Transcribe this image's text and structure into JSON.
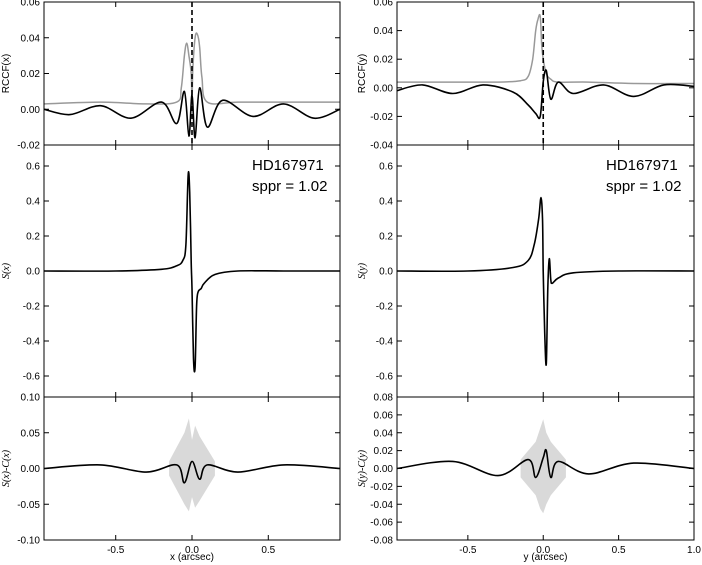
{
  "chart_data": [
    {
      "type": "line",
      "panel": "left-top",
      "xlim": [
        -0.97,
        0.97
      ],
      "ylim": [
        -0.02,
        0.06
      ],
      "ylabel": "RCCF(x)",
      "yticks": [
        -0.02,
        0.0,
        0.02,
        0.04,
        0.06
      ],
      "ytick_labels": [
        "-0.02",
        "0.00",
        "0.02",
        "0.04",
        "0.06"
      ],
      "vline_x": 0.0,
      "series": [
        {
          "color": "#999999",
          "x": [
            -0.97,
            -0.6,
            -0.3,
            -0.1,
            -0.07,
            -0.05,
            -0.035,
            -0.02,
            -0.005,
            0.0,
            0.005,
            0.02,
            0.035,
            0.05,
            0.065,
            0.1,
            0.3,
            0.6,
            0.97
          ],
          "y": [
            0.003,
            0.004,
            0.003,
            0.004,
            0.012,
            0.03,
            0.037,
            0.03,
            0.02,
            0.005,
            0.022,
            0.04,
            0.042,
            0.035,
            0.018,
            0.004,
            0.004,
            0.004,
            0.004
          ]
        },
        {
          "color": "#000000",
          "x": [
            -0.97,
            -0.8,
            -0.6,
            -0.4,
            -0.2,
            -0.1,
            -0.05,
            -0.02,
            0.0,
            0.02,
            0.05,
            0.1,
            0.2,
            0.4,
            0.6,
            0.8,
            0.97
          ],
          "y": [
            0.0,
            -0.003,
            0.002,
            -0.005,
            0.004,
            -0.008,
            0.01,
            -0.015,
            0.008,
            -0.016,
            0.012,
            -0.01,
            0.005,
            -0.004,
            0.003,
            -0.005,
            0.0
          ]
        }
      ]
    },
    {
      "type": "line",
      "panel": "left-middle",
      "xlim": [
        -0.97,
        0.97
      ],
      "ylim": [
        -0.72,
        0.72
      ],
      "ylabel": "S(x)",
      "yticks": [
        -0.6,
        -0.4,
        -0.2,
        0.0,
        0.2,
        0.4,
        0.6
      ],
      "ytick_labels": [
        "-0.6",
        "-0.4",
        "-0.2",
        "0.0",
        "0.2",
        "0.4",
        "0.6"
      ],
      "annotations": [
        "HD167971",
        "sppr = 1.02"
      ],
      "series": [
        {
          "color": "#000000",
          "x": [
            -0.97,
            -0.5,
            -0.2,
            -0.1,
            -0.06,
            -0.04,
            -0.025,
            -0.015,
            -0.005,
            0.0,
            0.01,
            0.02,
            0.03,
            0.04,
            0.06,
            0.08,
            0.15,
            0.3,
            0.6,
            0.97
          ],
          "y": [
            0.0,
            0.0,
            0.01,
            0.03,
            0.06,
            0.15,
            0.55,
            0.45,
            0.05,
            -0.1,
            -0.5,
            -0.55,
            -0.2,
            -0.12,
            -0.1,
            -0.07,
            -0.02,
            0.0,
            0.0,
            0.0
          ]
        }
      ]
    },
    {
      "type": "line",
      "panel": "left-bottom",
      "xlim": [
        -0.97,
        0.97
      ],
      "ylim": [
        -0.1,
        0.1
      ],
      "ylabel": "S(x)-C(x)",
      "xlabel": "x (arcsec)",
      "yticks": [
        -0.1,
        -0.05,
        0.0,
        0.05,
        0.1
      ],
      "ytick_labels": [
        "-0.10",
        "-0.05",
        "0.00",
        "0.05",
        "0.10"
      ],
      "xticks": [
        -0.5,
        0.0,
        0.5
      ],
      "xtick_labels": [
        "-0.5",
        "0.0",
        "0.5"
      ],
      "band": {
        "x": [
          -0.15,
          -0.05,
          -0.02,
          0.0,
          0.02,
          0.05,
          0.15
        ],
        "upper": [
          0.01,
          0.05,
          0.07,
          0.04,
          0.06,
          0.045,
          0.01
        ],
        "lower": [
          -0.01,
          -0.05,
          -0.06,
          -0.04,
          -0.055,
          -0.045,
          -0.01
        ]
      },
      "series": [
        {
          "color": "#000000",
          "x": [
            -0.97,
            -0.6,
            -0.3,
            -0.1,
            -0.05,
            0.0,
            0.05,
            0.1,
            0.3,
            0.6,
            0.97
          ],
          "y": [
            0.0,
            0.005,
            -0.005,
            0.005,
            -0.02,
            0.01,
            -0.015,
            0.005,
            -0.005,
            0.005,
            0.0
          ]
        }
      ]
    },
    {
      "type": "line",
      "panel": "right-top",
      "xlim": [
        -0.97,
        1.0
      ],
      "ylim": [
        -0.04,
        0.06
      ],
      "ylabel": "RCCF(y)",
      "yticks": [
        -0.04,
        -0.02,
        0.0,
        0.02,
        0.04,
        0.06
      ],
      "ytick_labels": [
        "-0.04",
        "-0.02",
        "0.00",
        "0.02",
        "0.04",
        "0.06"
      ],
      "vline_x": 0.0,
      "series": [
        {
          "color": "#999999",
          "x": [
            -0.97,
            -0.6,
            -0.3,
            -0.15,
            -0.1,
            -0.07,
            -0.05,
            -0.035,
            -0.02,
            -0.01,
            0.0,
            0.02,
            0.05,
            0.1,
            0.3,
            0.6,
            1.0
          ],
          "y": [
            0.004,
            0.004,
            0.004,
            0.005,
            0.008,
            0.02,
            0.04,
            0.048,
            0.05,
            0.03,
            0.02,
            0.01,
            0.006,
            0.004,
            0.004,
            0.003,
            0.003
          ]
        },
        {
          "color": "#000000",
          "x": [
            -0.97,
            -0.8,
            -0.6,
            -0.4,
            -0.2,
            -0.1,
            -0.05,
            -0.02,
            0.0,
            0.02,
            0.05,
            0.1,
            0.2,
            0.4,
            0.6,
            0.8,
            1.0
          ],
          "y": [
            -0.002,
            0.002,
            -0.004,
            0.002,
            -0.003,
            -0.012,
            -0.018,
            -0.02,
            0.004,
            0.012,
            -0.008,
            0.004,
            -0.004,
            0.002,
            -0.006,
            0.002,
            0.001
          ]
        }
      ]
    },
    {
      "type": "line",
      "panel": "right-middle",
      "xlim": [
        -0.97,
        1.0
      ],
      "ylim": [
        -0.72,
        0.72
      ],
      "ylabel": "S(y)",
      "yticks": [
        -0.6,
        -0.4,
        -0.2,
        0.0,
        0.2,
        0.4,
        0.6
      ],
      "ytick_labels": [
        "-0.6",
        "-0.4",
        "-0.2",
        "0.0",
        "0.2",
        "0.4",
        "0.6"
      ],
      "annotations": [
        "HD167971",
        "sppr = 1.02"
      ],
      "series": [
        {
          "color": "#000000",
          "x": [
            -0.97,
            -0.5,
            -0.2,
            -0.1,
            -0.06,
            -0.03,
            -0.015,
            -0.005,
            0.0,
            0.01,
            0.02,
            0.03,
            0.04,
            0.05,
            0.06,
            0.1,
            0.2,
            0.5,
            1.0
          ],
          "y": [
            0.0,
            0.0,
            0.02,
            0.06,
            0.15,
            0.3,
            0.42,
            0.3,
            0.0,
            -0.35,
            -0.53,
            -0.1,
            0.07,
            -0.05,
            -0.07,
            -0.04,
            -0.01,
            0.0,
            0.0
          ]
        }
      ]
    },
    {
      "type": "line",
      "panel": "right-bottom",
      "xlim": [
        -0.97,
        1.0
      ],
      "ylim": [
        -0.08,
        0.08
      ],
      "ylabel": "S(y)-C(y)",
      "xlabel": "y (arcsec)",
      "yticks": [
        -0.08,
        -0.06,
        -0.04,
        -0.02,
        0.0,
        0.02,
        0.04,
        0.06,
        0.08
      ],
      "ytick_labels": [
        "-0.08",
        "-0.06",
        "-0.04",
        "-0.02",
        "0.00",
        "0.02",
        "0.04",
        "0.06",
        "0.08"
      ],
      "xticks": [
        -0.5,
        0.0,
        0.5,
        1.0
      ],
      "xtick_labels": [
        "-0.5",
        "0.0",
        "0.5",
        "1.0"
      ],
      "band": {
        "x": [
          -0.15,
          -0.05,
          -0.02,
          0.0,
          0.02,
          0.05,
          0.15
        ],
        "upper": [
          0.01,
          0.03,
          0.045,
          0.055,
          0.04,
          0.03,
          0.01
        ],
        "lower": [
          -0.01,
          -0.03,
          -0.045,
          -0.05,
          -0.04,
          -0.03,
          -0.01
        ]
      },
      "series": [
        {
          "color": "#000000",
          "x": [
            -0.97,
            -0.6,
            -0.3,
            -0.1,
            -0.05,
            0.0,
            0.02,
            0.05,
            0.1,
            0.3,
            0.6,
            1.0
          ],
          "y": [
            0.0,
            0.008,
            -0.008,
            0.01,
            -0.01,
            0.012,
            0.02,
            -0.01,
            0.008,
            -0.006,
            0.006,
            0.0
          ]
        }
      ]
    }
  ]
}
